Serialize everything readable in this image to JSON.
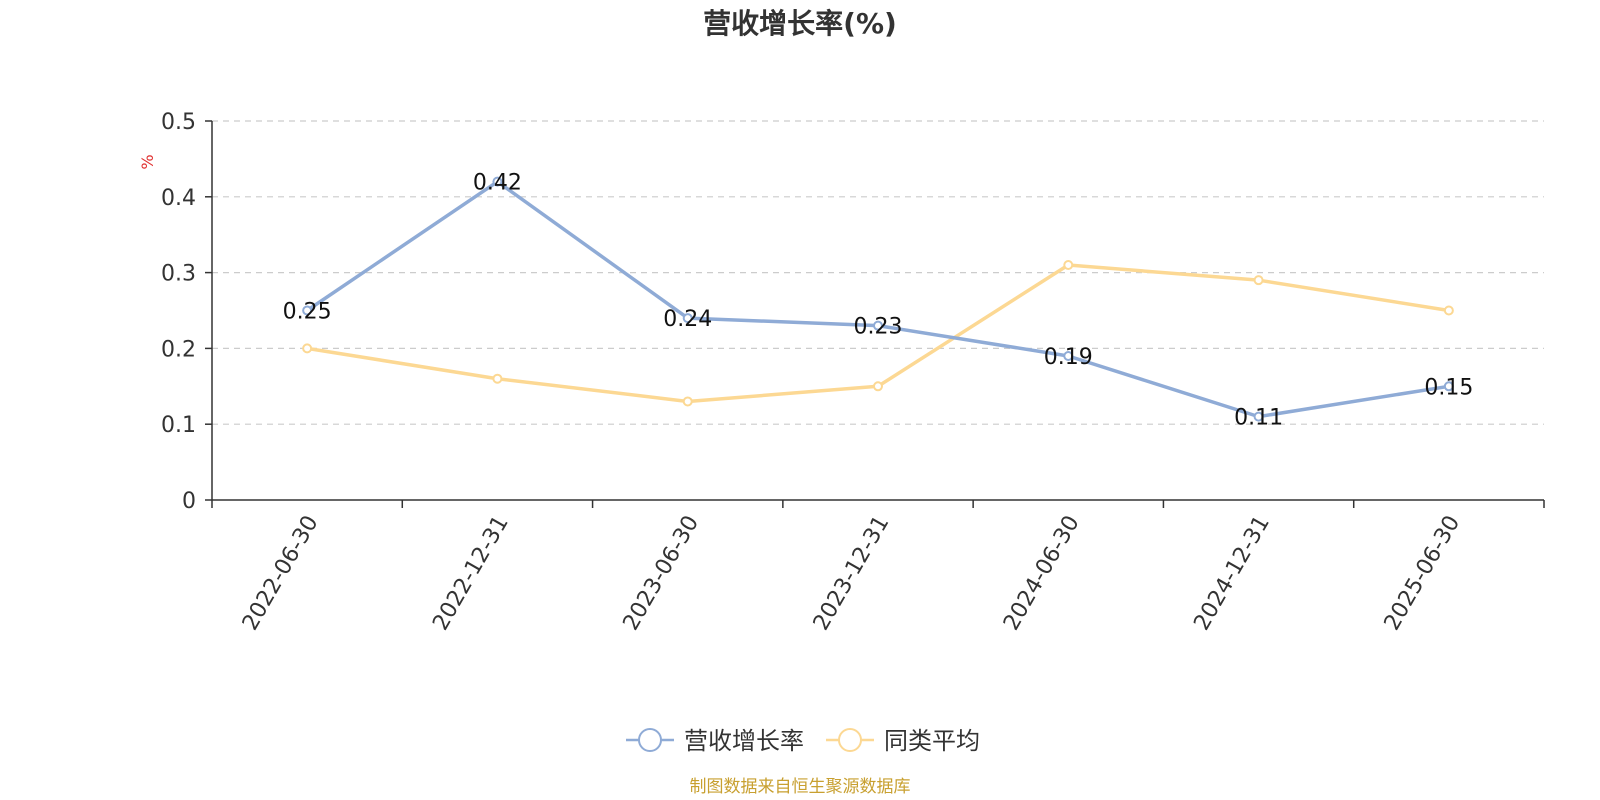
{
  "chart_data": {
    "type": "line",
    "title": "营收增长率(%)",
    "ylabel": "%",
    "xlabel": "",
    "categories": [
      "2022-06-30",
      "2022-12-31",
      "2023-06-30",
      "2023-12-31",
      "2024-06-30",
      "2024-12-31",
      "2025-06-30"
    ],
    "ylim": [
      0,
      0.5
    ],
    "yticks": [
      "0",
      "0.1",
      "0.2",
      "0.3",
      "0.4",
      "0.5"
    ],
    "grid": true,
    "legend_position": "bottom-center",
    "series": [
      {
        "name": "营收增长率",
        "values": [
          0.25,
          0.42,
          0.24,
          0.23,
          0.19,
          0.11,
          0.15
        ],
        "data_labels": [
          "0.25",
          "0.42",
          "0.24",
          "0.23",
          "0.19",
          "0.11",
          "0.15"
        ],
        "color": "#8fabd6"
      },
      {
        "name": "同类平均",
        "values": [
          0.2,
          0.16,
          0.13,
          0.15,
          0.31,
          0.29,
          0.25
        ],
        "color": "#fcd893"
      }
    ],
    "source": "制图数据来自恒生聚源数据库"
  },
  "colors": {
    "axis": "#333333",
    "grid": "#cccccc",
    "unit": "#e03030",
    "source": "#c8a030"
  }
}
